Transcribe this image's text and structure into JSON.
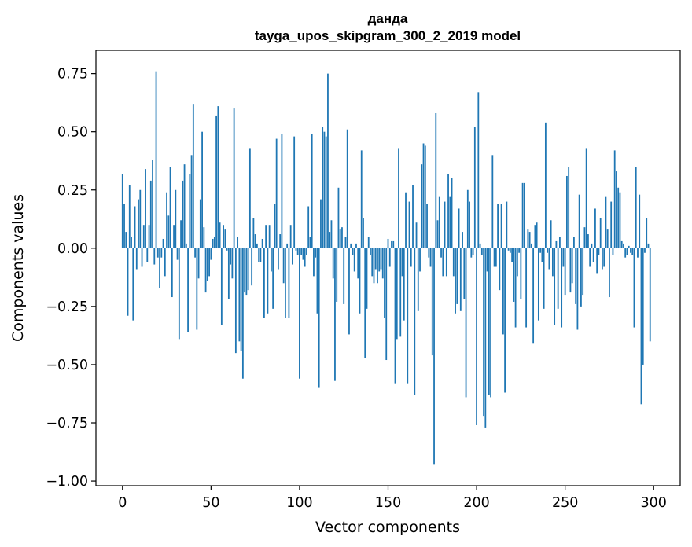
{
  "chart_data": {
    "type": "bar",
    "title": "данда",
    "subtitle": "tayga_upos_skipgram_300_2_2019 model",
    "xlabel": "Vector components",
    "ylabel": "Components values",
    "xlim": [
      -15,
      315
    ],
    "ylim": [
      -1.02,
      0.85
    ],
    "x_ticks": [
      0,
      50,
      100,
      150,
      200,
      250,
      300
    ],
    "x_tick_labels": [
      "0",
      "50",
      "100",
      "150",
      "200",
      "250",
      "300"
    ],
    "y_ticks": [
      0.75,
      0.5,
      0.25,
      0.0,
      -0.25,
      -0.5,
      -0.75,
      -1.0
    ],
    "y_tick_labels": [
      "0.75",
      "0.50",
      "0.25",
      "0.00",
      "−0.25",
      "−0.50",
      "−0.75",
      "−1.00"
    ],
    "bar_color": "#1f77b4",
    "grid": false,
    "values": [
      0.32,
      0.19,
      0.07,
      -0.29,
      0.27,
      0.05,
      -0.31,
      0.18,
      -0.09,
      0.21,
      0.25,
      -0.08,
      0.1,
      0.34,
      -0.06,
      0.1,
      0.29,
      0.38,
      -0.07,
      0.76,
      -0.04,
      -0.17,
      -0.04,
      0.04,
      -0.12,
      0.24,
      0.14,
      0.35,
      -0.21,
      0.1,
      0.25,
      -0.05,
      -0.39,
      0.12,
      0.29,
      0.36,
      0.02,
      -0.36,
      0.32,
      0.4,
      0.62,
      -0.04,
      -0.35,
      -0.13,
      0.21,
      0.5,
      0.09,
      -0.19,
      -0.14,
      -0.12,
      -0.05,
      0.04,
      0.05,
      0.57,
      0.61,
      0.11,
      -0.33,
      0.1,
      0.08,
      -0.01,
      -0.22,
      -0.07,
      -0.13,
      0.6,
      -0.45,
      0.05,
      -0.4,
      -0.44,
      -0.56,
      -0.19,
      -0.2,
      -0.18,
      0.43,
      -0.16,
      0.13,
      0.06,
      0.02,
      -0.06,
      -0.06,
      0.04,
      -0.3,
      0.1,
      -0.28,
      0.1,
      -0.1,
      -0.26,
      0.19,
      0.47,
      -0.09,
      0.06,
      0.49,
      -0.15,
      -0.3,
      0.02,
      -0.3,
      0.1,
      -0.07,
      0.48,
      -0.01,
      -0.03,
      -0.56,
      -0.03,
      -0.05,
      -0.08,
      -0.03,
      0.18,
      0.05,
      0.49,
      -0.12,
      -0.04,
      -0.28,
      -0.6,
      0.21,
      0.52,
      0.5,
      0.48,
      0.75,
      0.07,
      0.12,
      -0.13,
      -0.57,
      -0.23,
      0.26,
      0.08,
      0.09,
      -0.24,
      0.05,
      0.51,
      -0.37,
      0.02,
      -0.03,
      -0.1,
      0.02,
      -0.13,
      -0.28,
      0.42,
      0.13,
      -0.47,
      -0.26,
      0.05,
      -0.03,
      -0.12,
      -0.15,
      -0.09,
      -0.15,
      -0.1,
      -0.09,
      -0.13,
      -0.3,
      -0.48,
      0.04,
      -0.08,
      0.03,
      0.03,
      -0.58,
      -0.39,
      0.43,
      -0.38,
      -0.12,
      -0.31,
      0.24,
      -0.58,
      0.2,
      -0.08,
      0.27,
      -0.63,
      0.11,
      -0.27,
      -0.1,
      0.36,
      0.45,
      0.44,
      0.19,
      -0.04,
      -0.08,
      -0.46,
      -0.93,
      0.58,
      0.12,
      0.22,
      -0.04,
      -0.12,
      0.2,
      -0.12,
      0.32,
      0.22,
      0.3,
      -0.12,
      -0.28,
      -0.24,
      0.17,
      -0.27,
      0.07,
      -0.22,
      -0.64,
      0.25,
      0.2,
      -0.04,
      -0.03,
      0.52,
      -0.76,
      0.67,
      0.02,
      -0.03,
      -0.72,
      -0.77,
      -0.1,
      -0.63,
      -0.64,
      0.4,
      -0.08,
      -0.08,
      0.19,
      -0.18,
      0.19,
      -0.37,
      -0.62,
      0.2,
      -0.01,
      -0.02,
      -0.06,
      -0.23,
      -0.34,
      -0.12,
      -0.02,
      -0.22,
      0.28,
      0.28,
      -0.34,
      0.08,
      0.07,
      0.02,
      -0.41,
      0.1,
      0.11,
      -0.31,
      -0.02,
      -0.06,
      -0.26,
      0.54,
      -0.02,
      -0.09,
      0.12,
      -0.12,
      -0.33,
      0.03,
      -0.26,
      0.05,
      -0.34,
      -0.08,
      -0.2,
      0.31,
      0.35,
      -0.19,
      -0.15,
      0.05,
      -0.24,
      -0.35,
      0.23,
      -0.25,
      -0.2,
      0.09,
      0.43,
      0.06,
      -0.08,
      0.02,
      -0.06,
      0.17,
      -0.11,
      -0.03,
      0.13,
      -0.09,
      -0.08,
      0.22,
      0.08,
      -0.21,
      0.2,
      -0.03,
      0.42,
      0.33,
      0.26,
      0.24,
      0.03,
      0.02,
      -0.04,
      -0.03,
      0.01,
      -0.02,
      -0.03,
      -0.34,
      0.35,
      -0.04,
      0.23,
      -0.67,
      -0.5,
      -0.02,
      0.13,
      0.02,
      -0.4,
      0.0
    ]
  }
}
